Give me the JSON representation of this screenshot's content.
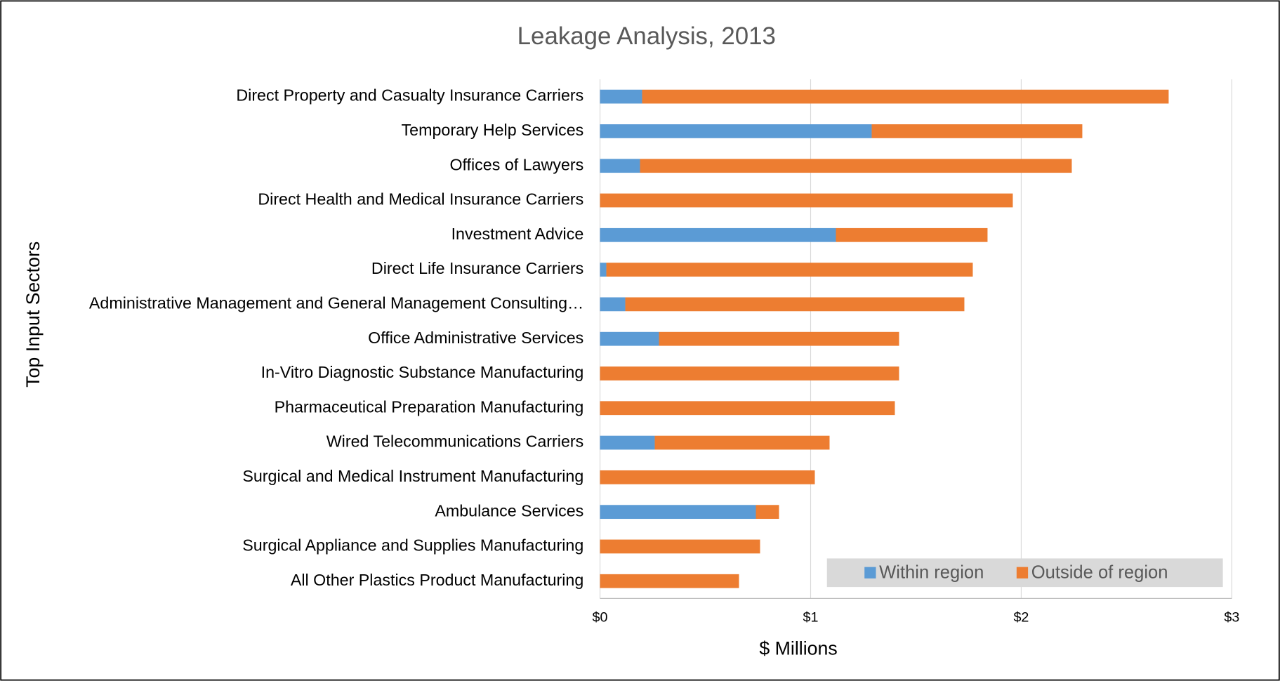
{
  "chart_data": {
    "type": "stacked-hbar",
    "title": "Leakage Analysis, 2013",
    "x_label": "$ Millions",
    "y_label": "Top Input Sectors",
    "categories": [
      "Direct Property and Casualty Insurance Carriers",
      "Temporary Help Services",
      "Offices of Lawyers",
      "Direct Health and Medical Insurance Carriers",
      "Investment Advice",
      "Direct Life Insurance Carriers",
      "Administrative Management and General Management Consulting…",
      "Office Administrative Services",
      "In-Vitro Diagnostic Substance Manufacturing",
      "Pharmaceutical Preparation Manufacturing",
      "Wired Telecommunications Carriers",
      "Surgical and Medical Instrument Manufacturing",
      "Ambulance Services",
      "Surgical Appliance and Supplies Manufacturing",
      "All Other Plastics Product Manufacturing"
    ],
    "series": [
      {
        "name": "Within region",
        "color": "#5b9bd5",
        "values": [
          0.2,
          1.29,
          0.19,
          0,
          1.12,
          0.03,
          0.12,
          0.28,
          0,
          0,
          0.26,
          0,
          0.74,
          0,
          0
        ]
      },
      {
        "name": "Outside of region",
        "color": "#ed7d31",
        "values": [
          2.5,
          1.0,
          2.05,
          1.96,
          0.72,
          1.74,
          1.61,
          1.14,
          1.42,
          1.4,
          0.83,
          1.02,
          0.11,
          0.76,
          0.66
        ]
      }
    ],
    "xlim": [
      0,
      3
    ],
    "xticks": [
      {
        "value": 0,
        "label": "$0"
      },
      {
        "value": 1,
        "label": "$1"
      },
      {
        "value": 2,
        "label": "$2"
      },
      {
        "value": 3,
        "label": "$3"
      }
    ],
    "grid": true,
    "legend": "bottom-right"
  }
}
